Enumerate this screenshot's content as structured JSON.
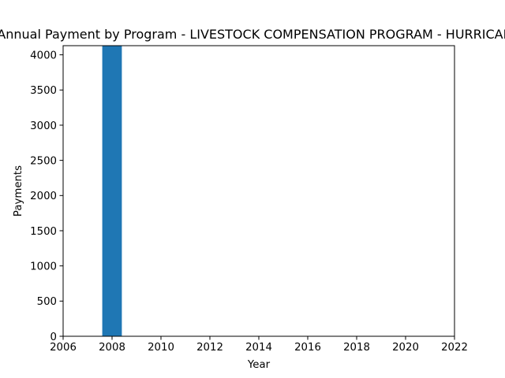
{
  "chart_data": {
    "type": "bar",
    "title": "Annual Payment by Program - LIVESTOCK COMPENSATION PROGRAM - HURRICANE",
    "xlabel": "Year",
    "ylabel": "Payments",
    "x": [
      2008
    ],
    "values": [
      4130
    ],
    "bar_width": 0.8,
    "xlim": [
      2006,
      2022
    ],
    "ylim": [
      0,
      4130
    ],
    "xticks": [
      2006,
      2008,
      2010,
      2012,
      2014,
      2016,
      2018,
      2020,
      2022
    ],
    "yticks": [
      0,
      500,
      1000,
      1500,
      2000,
      2500,
      3000,
      3500,
      4000
    ],
    "grid": false,
    "legend": "none",
    "bar_color": "#1f77b4"
  }
}
